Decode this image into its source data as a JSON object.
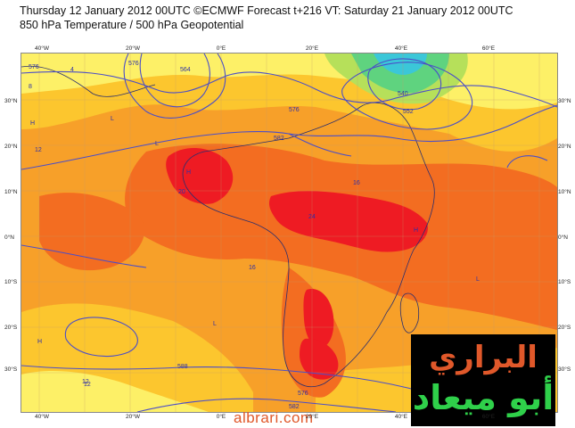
{
  "header": {
    "line1": "Thursday 12 January 2012 00UTC ©ECMWF Forecast t+216 VT: Saturday 21 January 2012 00UTC",
    "line2": "850 hPa Temperature / 500 hPa Geopotential"
  },
  "map": {
    "lat_labels": [
      "30°N",
      "20°N",
      "10°N",
      "0°N",
      "10°S",
      "20°S",
      "30°S"
    ],
    "lon_labels_top": [
      "40°W",
      "20°W",
      "0°E",
      "20°E",
      "40°E",
      "60°E"
    ],
    "lon_labels_bottom": [
      "40°W",
      "20°W",
      "0°E",
      "20°E",
      "40°E",
      "60°E"
    ],
    "contour_labels": [
      "576",
      "4",
      "576",
      "564",
      "8",
      "540",
      "552",
      "576",
      "582",
      "12",
      "16",
      "20",
      "24",
      "16",
      "12",
      "588",
      "582",
      "576",
      "12"
    ],
    "pressure_markers": [
      "H",
      "L",
      "H",
      "L",
      "H",
      "L",
      "H",
      "L"
    ],
    "colors": {
      "very_hot": "#ee1b23",
      "hot": "#f36d21",
      "warm": "#f7a029",
      "mild": "#fcc62e",
      "cool": "#fdf067",
      "cold": "#b6e05a",
      "colder": "#5fd37f",
      "cyan": "#3bc7d8",
      "contour": "#4b4ec8"
    }
  },
  "logo": {
    "line1": "البراري",
    "line2": "أبو ميعاد"
  },
  "footer": {
    "url": "albrari.com"
  }
}
